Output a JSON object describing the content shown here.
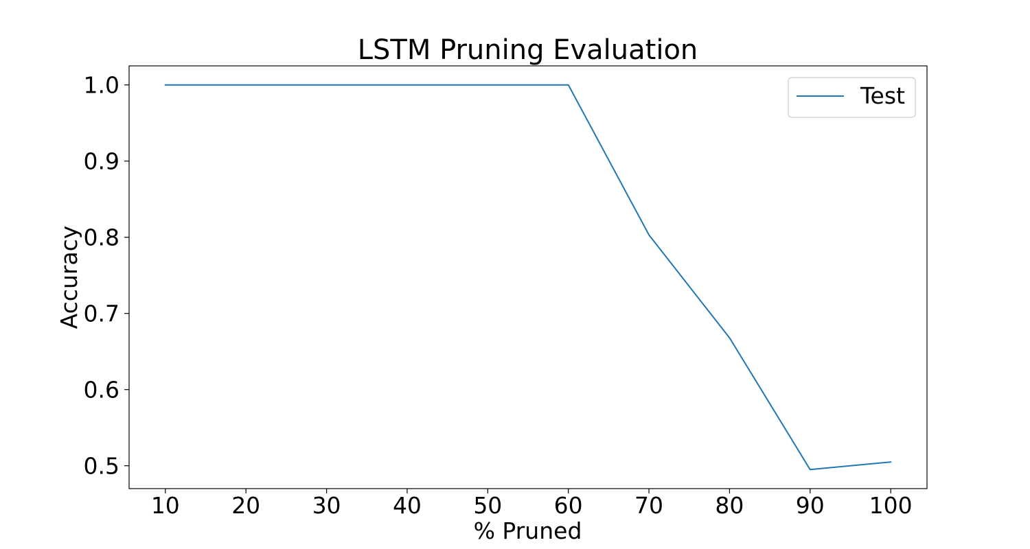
{
  "chart_data": {
    "type": "line",
    "title": "LSTM Pruning Evaluation",
    "xlabel": "% Pruned",
    "ylabel": "Accuracy",
    "x": [
      10,
      20,
      30,
      40,
      50,
      60,
      70,
      80,
      90,
      100
    ],
    "series": [
      {
        "name": "Test",
        "color": "#1f77b4",
        "values": [
          1.0,
          1.0,
          1.0,
          1.0,
          1.0,
          1.0,
          0.803,
          0.668,
          0.495,
          0.505
        ]
      }
    ],
    "xlim": [
      5.5,
      104.5
    ],
    "ylim": [
      0.47,
      1.025
    ],
    "xticks": [
      10,
      20,
      30,
      40,
      50,
      60,
      70,
      80,
      90,
      100
    ],
    "yticks": [
      0.5,
      0.6,
      0.7,
      0.8,
      0.9,
      1.0
    ],
    "ytick_labels": [
      "0.5",
      "0.6",
      "0.7",
      "0.8",
      "0.9",
      "1.0"
    ],
    "grid": false,
    "legend_position": "top-right"
  }
}
